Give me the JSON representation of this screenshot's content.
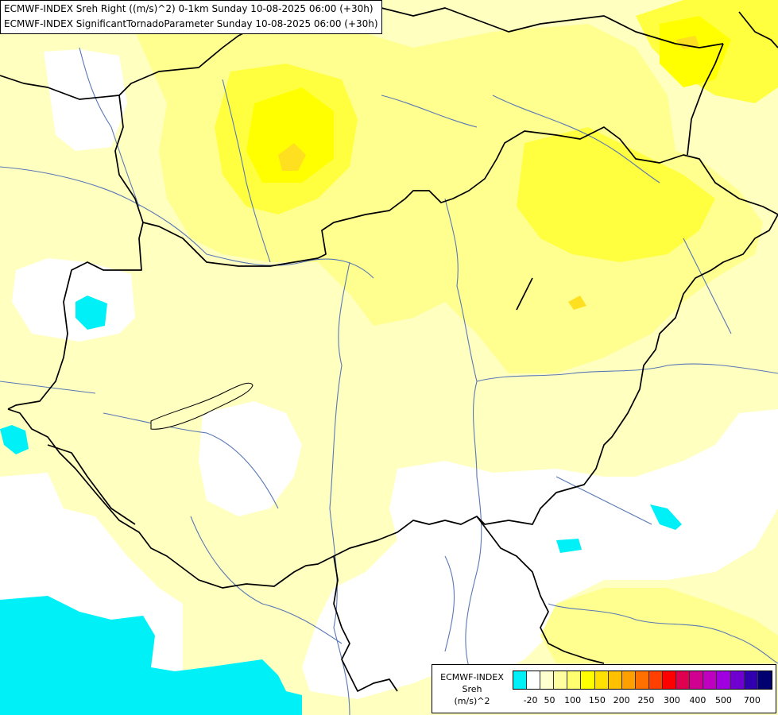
{
  "title": {
    "line1": "ECMWF-INDEX Sreh Right ((m/s)^2) 0-1km Sunday 10-08-2025 06:00 (+30h)",
    "line2": "ECMWF-INDEX SignificantTornadoParameter Sunday 10-08-2025 06:00 (+30h)"
  },
  "legend": {
    "line1": "ECMWF-INDEX",
    "line2": "Sreh",
    "line3": "(m/s)^2",
    "colors": [
      "#00f0f8",
      "#ffffff",
      "#ffffd0",
      "#ffffa0",
      "#ffff70",
      "#ffff00",
      "#ffe000",
      "#ffc000",
      "#ffa000",
      "#ff7000",
      "#ff4000",
      "#ff0000",
      "#e00050",
      "#d00090",
      "#c000c0",
      "#a000e0",
      "#7000d0",
      "#3000b0",
      "#000070"
    ],
    "ticks": [
      "-20",
      "50",
      "100",
      "150",
      "200",
      "250",
      "300",
      "400",
      "500",
      "700"
    ]
  },
  "colors": {
    "cyan": "#00f0f8",
    "pale_yellow": "#ffffc0",
    "light_yellow": "#ffff90",
    "yellow": "#ffff40",
    "bright_yellow": "#ffff00",
    "gold": "#ffe020",
    "border": "#000000",
    "river": "#5a78b4"
  }
}
